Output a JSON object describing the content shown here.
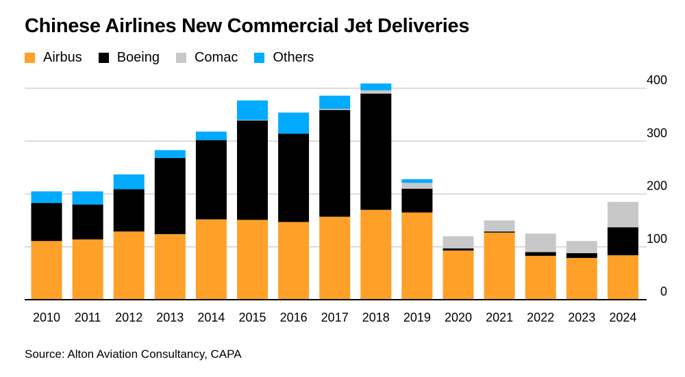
{
  "title": "Chinese Airlines New Commercial Jet Deliveries",
  "source": "Source: Alton Aviation Consultancy, CAPA",
  "legend": [
    {
      "label": "Airbus",
      "color": "#ffa028"
    },
    {
      "label": "Boeing",
      "color": "#000000"
    },
    {
      "label": "Comac",
      "color": "#c8c8c8"
    },
    {
      "label": "Others",
      "color": "#00aaff"
    }
  ],
  "chart_data": {
    "type": "bar",
    "stacked": true,
    "title": "Chinese Airlines New Commercial Jet Deliveries",
    "xlabel": "",
    "ylabel": "",
    "ylim": [
      0,
      400
    ],
    "yticks": [
      0,
      100,
      200,
      300,
      400
    ],
    "ytick_labels": [
      "0",
      "100",
      "200",
      "300",
      "400"
    ],
    "grid": true,
    "legend_position": "top-left",
    "yaxis_position": "right",
    "categories": [
      "2010",
      "2011",
      "2012",
      "2013",
      "2014",
      "2015",
      "2016",
      "2017",
      "2018",
      "2019",
      "2020",
      "2021",
      "2022",
      "2023",
      "2024"
    ],
    "series": [
      {
        "name": "Airbus",
        "color": "#ffa028",
        "values": [
          111,
          114,
          129,
          124,
          152,
          151,
          147,
          157,
          170,
          165,
          93,
          127,
          83,
          79,
          84
        ]
      },
      {
        "name": "Boeing",
        "color": "#000000",
        "values": [
          72,
          66,
          80,
          144,
          150,
          188,
          167,
          202,
          220,
          45,
          4,
          2,
          7,
          9,
          53
        ]
      },
      {
        "name": "Comac",
        "color": "#c8c8c8",
        "values": [
          0,
          0,
          0,
          0,
          0,
          1,
          0,
          2,
          6,
          11,
          23,
          21,
          35,
          23,
          48
        ]
      },
      {
        "name": "Others",
        "color": "#00aaff",
        "values": [
          22,
          25,
          28,
          15,
          16,
          37,
          40,
          25,
          13,
          7,
          0,
          0,
          0,
          0,
          0
        ]
      }
    ]
  }
}
